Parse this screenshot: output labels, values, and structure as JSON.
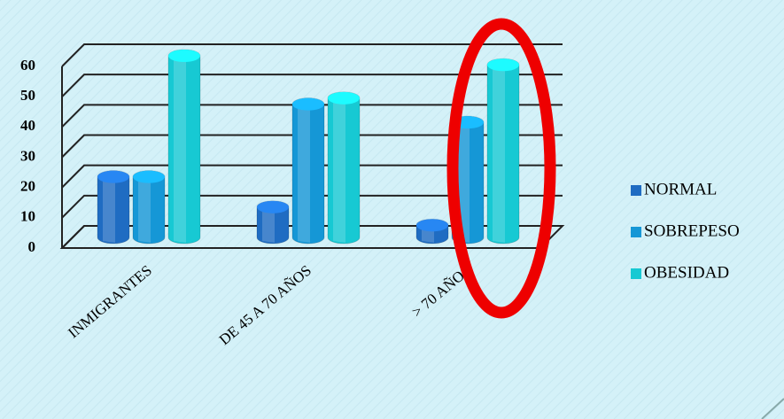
{
  "chart_data": {
    "type": "bar3d",
    "categories": [
      "INMIGRANTES",
      "DE 45 A 70 AÑOS",
      "> 70 AÑOS"
    ],
    "series": [
      {
        "name": "NORMAL",
        "color": "#1f6cc2",
        "values": [
          20,
          10,
          4
        ]
      },
      {
        "name": "SOBREPESO",
        "color": "#1597d6",
        "values": [
          20,
          44,
          38
        ]
      },
      {
        "name": "OBESIDAD",
        "color": "#17c9d3",
        "values": [
          60,
          46,
          57
        ]
      }
    ],
    "ylim": [
      0,
      60
    ],
    "yticks": [
      0,
      10,
      20,
      30,
      40,
      50,
      60
    ],
    "grid": true,
    "legend": "right"
  }
}
